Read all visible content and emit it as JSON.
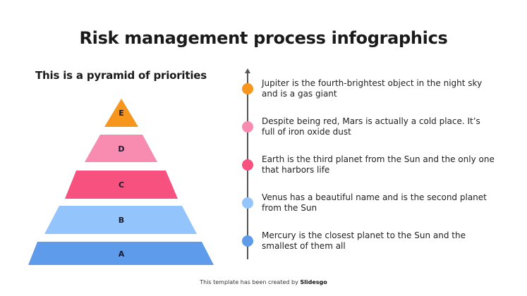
{
  "title": "Risk management process infographics",
  "subtitle": "This is a pyramid of priorities",
  "pyramid": [
    {
      "label": "E",
      "color": "#f7961d"
    },
    {
      "label": "D",
      "color": "#f78bb0"
    },
    {
      "label": "C",
      "color": "#f7527f"
    },
    {
      "label": "B",
      "color": "#93c4fb"
    },
    {
      "label": "A",
      "color": "#5e9bea"
    }
  ],
  "timeline": [
    {
      "text": "Jupiter is the fourth-brightest object in the night sky and is a gas giant",
      "color": "#f7961d"
    },
    {
      "text": "Despite being red, Mars is actually a cold place. It’s full of iron oxide dust",
      "color": "#f78bb0"
    },
    {
      "text": "Earth is the third planet from the Sun and the only one that harbors life",
      "color": "#f7527f"
    },
    {
      "text": "Venus has a beautiful name and is the second planet from the Sun",
      "color": "#93c4fb"
    },
    {
      "text": "Mercury is the closest planet to the Sun and the smallest of them all",
      "color": "#5e9bea"
    }
  ],
  "footer": {
    "text": "This template has been created by ",
    "brand": "Slidesgo"
  }
}
